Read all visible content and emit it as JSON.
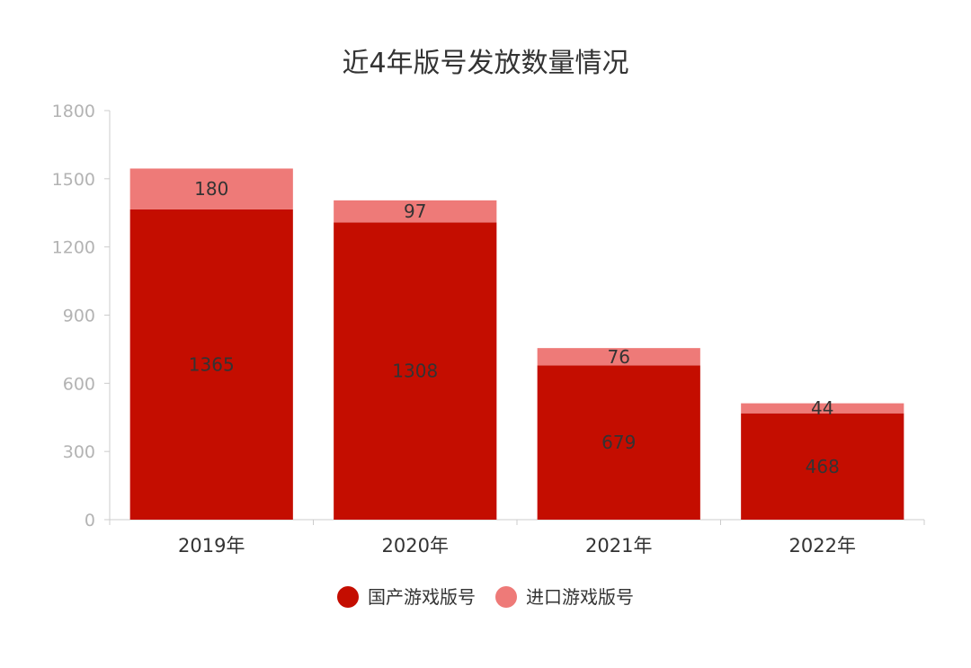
{
  "chart_data": {
    "type": "bar",
    "stacked": true,
    "title": "近4年版号发放数量情况",
    "categories": [
      "2019年",
      "2020年",
      "2021年",
      "2022年"
    ],
    "series": [
      {
        "name": "国产游戏版号",
        "values": [
          1365,
          1308,
          679,
          468
        ],
        "color": "#c40d00"
      },
      {
        "name": "进口游戏版号",
        "values": [
          180,
          97,
          76,
          44
        ],
        "color": "#ee7a78"
      }
    ],
    "ylim": [
      0,
      1800
    ],
    "yticks": [
      0,
      300,
      600,
      900,
      1200,
      1500,
      1800
    ],
    "grid": false,
    "legend": "bottom-center"
  }
}
